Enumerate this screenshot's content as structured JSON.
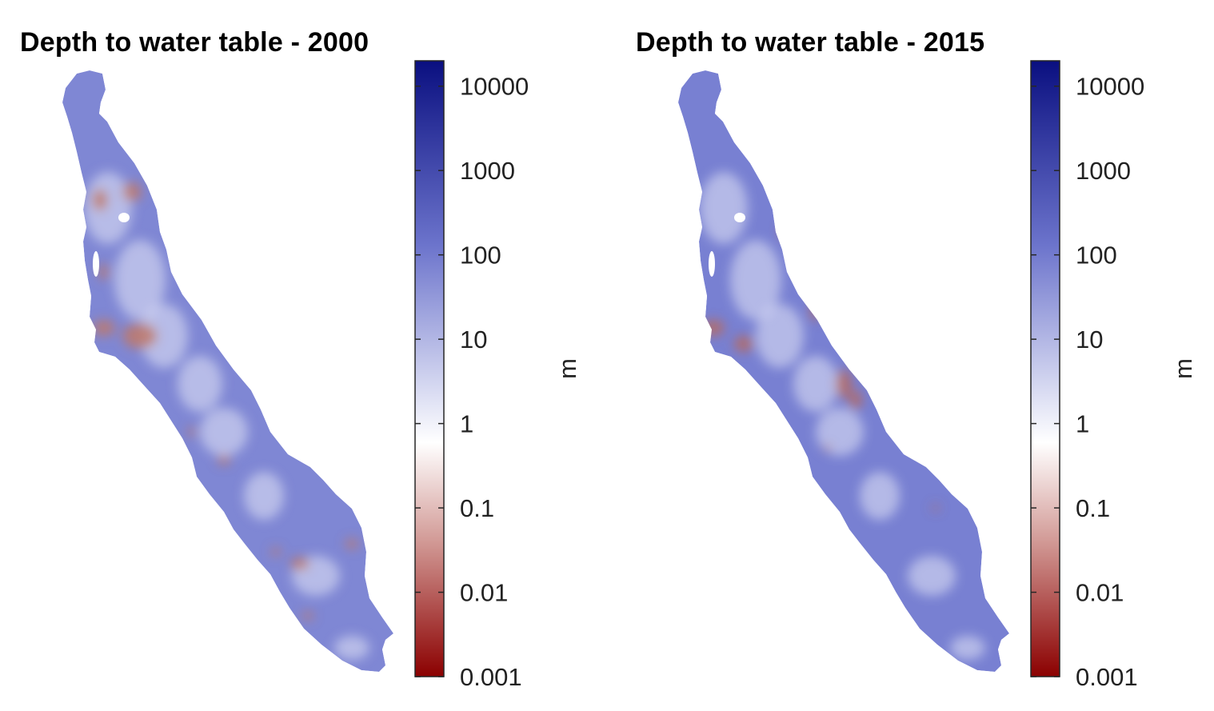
{
  "chart_data": [
    {
      "type": "heatmap",
      "title": "Depth to water table - 2000",
      "colorbar": {
        "label": "m",
        "scale": "log",
        "range": [
          0.001,
          20000
        ],
        "ticks": [
          {
            "value": 10000,
            "label": "10000"
          },
          {
            "value": 1000,
            "label": "1000"
          },
          {
            "value": 100,
            "label": "100"
          },
          {
            "value": 10,
            "label": "10"
          },
          {
            "value": 1,
            "label": "1"
          },
          {
            "value": 0.1,
            "label": "0.1"
          },
          {
            "value": 0.01,
            "label": "0.01"
          },
          {
            "value": 0.001,
            "label": "0.001"
          }
        ],
        "colors": {
          "low": "#8b0000",
          "mid": "#ffffff",
          "high": "#0a0f80"
        }
      },
      "map_colors": {
        "base": "#7f87d4",
        "light": "#e6e8f7",
        "shallow": "#c07868"
      }
    },
    {
      "type": "heatmap",
      "title": "Depth to water table - 2015",
      "colorbar": {
        "label": "m",
        "scale": "log",
        "range": [
          0.001,
          20000
        ],
        "ticks": [
          {
            "value": 10000,
            "label": "10000"
          },
          {
            "value": 1000,
            "label": "1000"
          },
          {
            "value": 100,
            "label": "100"
          },
          {
            "value": 10,
            "label": "10"
          },
          {
            "value": 1,
            "label": "1"
          },
          {
            "value": 0.1,
            "label": "0.1"
          },
          {
            "value": 0.01,
            "label": "0.01"
          },
          {
            "value": 0.001,
            "label": "0.001"
          }
        ],
        "colors": {
          "low": "#8b0000",
          "mid": "#ffffff",
          "high": "#0a0f80"
        }
      },
      "map_colors": {
        "base": "#7880d2",
        "light": "#e6e8f7",
        "shallow": "#b86a5e"
      }
    }
  ]
}
